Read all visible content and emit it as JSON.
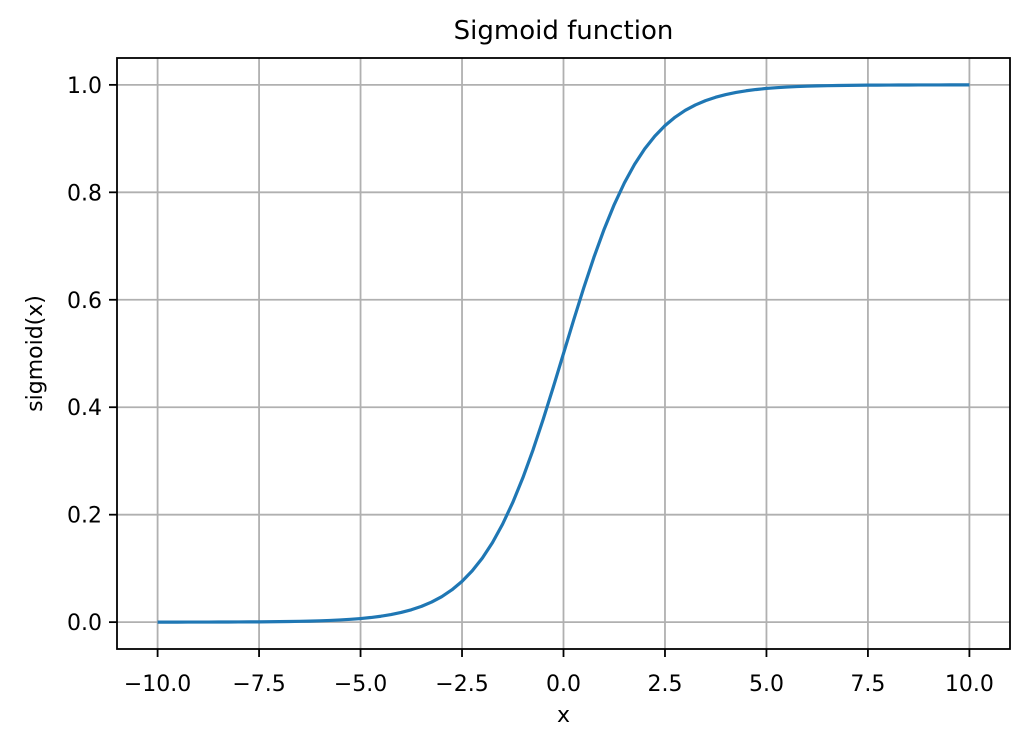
{
  "chart_data": {
    "type": "line",
    "title": "Sigmoid function",
    "xlabel": "x",
    "ylabel": "sigmoid(x)",
    "xlim": [
      -11,
      11
    ],
    "ylim": [
      -0.05,
      1.05
    ],
    "grid": true,
    "grid_color": "#b0b0b0",
    "spine_color": "#000000",
    "line_color": "#1f77b4",
    "line_width": 3.2,
    "xticks": {
      "values": [
        -10,
        -7.5,
        -5,
        -2.5,
        0,
        2.5,
        5,
        7.5,
        10
      ],
      "labels": [
        "−10.0",
        "−7.5",
        "−5.0",
        "−2.5",
        "0.0",
        "2.5",
        "5.0",
        "7.5",
        "10.0"
      ]
    },
    "yticks": {
      "values": [
        0,
        0.2,
        0.4,
        0.6,
        0.8,
        1.0
      ],
      "labels": [
        "0.0",
        "0.2",
        "0.4",
        "0.6",
        "0.8",
        "1.0"
      ]
    },
    "x": [
      -10,
      -9.75,
      -9.5,
      -9.25,
      -9,
      -8.75,
      -8.5,
      -8.25,
      -8,
      -7.75,
      -7.5,
      -7.25,
      -7,
      -6.75,
      -6.5,
      -6.25,
      -6,
      -5.75,
      -5.5,
      -5.25,
      -5,
      -4.75,
      -4.5,
      -4.25,
      -4,
      -3.75,
      -3.5,
      -3.25,
      -3,
      -2.75,
      -2.5,
      -2.25,
      -2,
      -1.75,
      -1.5,
      -1.25,
      -1,
      -0.75,
      -0.5,
      -0.25,
      0,
      0.25,
      0.5,
      0.75,
      1,
      1.25,
      1.5,
      1.75,
      2,
      2.25,
      2.5,
      2.75,
      3,
      3.25,
      3.5,
      3.75,
      4,
      4.25,
      4.5,
      4.75,
      5,
      5.25,
      5.5,
      5.75,
      6,
      6.25,
      6.5,
      6.75,
      7,
      7.25,
      7.5,
      7.75,
      8,
      8.25,
      8.5,
      8.75,
      9,
      9.25,
      9.5,
      9.75,
      10
    ],
    "y": [
      5e-05,
      6e-05,
      7e-05,
      0.0001,
      0.00012,
      0.00016,
      0.0002,
      0.00026,
      0.00034,
      0.00043,
      0.00055,
      0.00071,
      0.00091,
      0.00117,
      0.0015,
      0.00193,
      0.00247,
      0.00317,
      0.00407,
      0.00522,
      0.00669,
      0.00858,
      0.01099,
      0.01406,
      0.01799,
      0.02298,
      0.02931,
      0.03733,
      0.04743,
      0.06009,
      0.07586,
      0.09535,
      0.1192,
      0.14805,
      0.18243,
      0.2227,
      0.26894,
      0.32082,
      0.37754,
      0.43782,
      0.5,
      0.56218,
      0.62246,
      0.67918,
      0.73106,
      0.7773,
      0.81757,
      0.85195,
      0.8808,
      0.90465,
      0.92414,
      0.93991,
      0.95257,
      0.96267,
      0.97069,
      0.97702,
      0.98201,
      0.98594,
      0.98901,
      0.99142,
      0.99331,
      0.99478,
      0.99593,
      0.99683,
      0.99753,
      0.99807,
      0.9985,
      0.99883,
      0.99909,
      0.99929,
      0.99945,
      0.99957,
      0.99966,
      0.99974,
      0.9998,
      0.99984,
      0.99988,
      0.9999,
      0.99993,
      0.99994,
      0.99995
    ]
  }
}
